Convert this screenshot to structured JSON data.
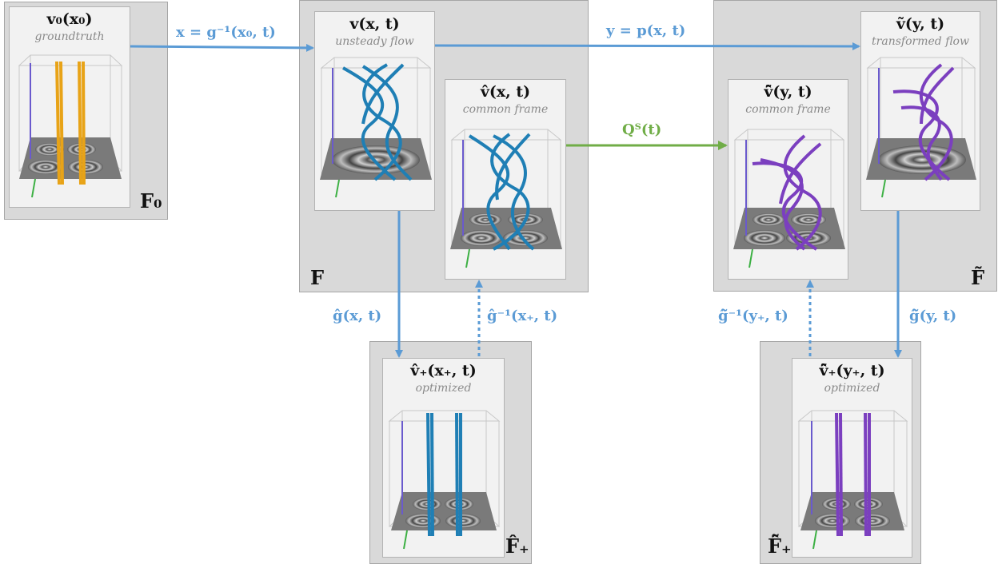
{
  "colors": {
    "frame_bg": "#d9d9d9",
    "panel_bg": "#f2f2f2",
    "arrow_blue": "#5b9bd5",
    "arrow_green": "#70ad47",
    "tube_orange": "#e8a317",
    "tube_blue": "#1f7fb5",
    "tube_purple": "#7b3fbf",
    "axis_purple": "#6a5acd",
    "axis_green": "#3cb043"
  },
  "frames": {
    "F0": "F₀",
    "F": "F",
    "F_tilde": "F̃",
    "F_hat_star": "F̂₊",
    "F_hat_tilde_star": "F̂̃₊"
  },
  "panels": {
    "groundtruth": {
      "title": "v₀(x₀)",
      "subtitle": "groundtruth"
    },
    "unsteady": {
      "title": "v(x, t)",
      "subtitle": "unsteady flow"
    },
    "common_left": {
      "title": "v̂(x, t)",
      "subtitle": "common frame"
    },
    "common_right": {
      "title": "v̂̃(y, t)",
      "subtitle": "common frame"
    },
    "transformed": {
      "title": "ṽ(y, t)",
      "subtitle": "transformed flow"
    },
    "optimized_left": {
      "title": "v̂₊(x₊, t)",
      "subtitle": "optimized"
    },
    "optimized_right": {
      "title": "v̂̃₊(y₊, t)",
      "subtitle": "optimized"
    }
  },
  "arrows": {
    "g_inverse": "x = g⁻¹(x₀, t)",
    "p_map": "y = p(x, t)",
    "QT": "Qᵀ(t)",
    "g_hat": "ĝ(x, t)",
    "g_hat_inverse": "ĝ⁻¹(x₊, t)",
    "g_hat_tilde_inverse": "ĝ̃⁻¹(y₊, t)",
    "g_hat_tilde": "ĝ̃(y, t)"
  }
}
